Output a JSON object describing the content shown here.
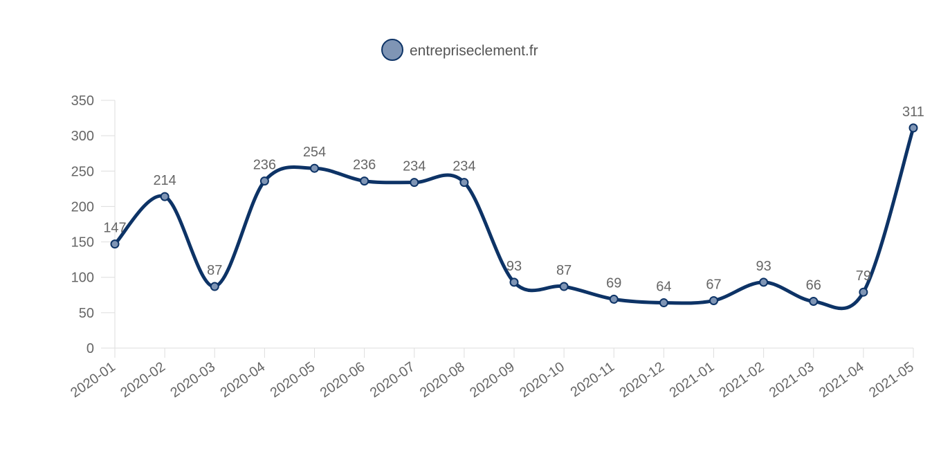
{
  "chart_data": {
    "type": "line",
    "title": "",
    "xlabel": "",
    "ylabel": "",
    "categories": [
      "2020-01",
      "2020-02",
      "2020-03",
      "2020-04",
      "2020-05",
      "2020-06",
      "2020-07",
      "2020-08",
      "2020-09",
      "2020-10",
      "2020-11",
      "2020-12",
      "2021-01",
      "2021-02",
      "2021-03",
      "2021-04",
      "2021-05"
    ],
    "series": [
      {
        "name": "entrepriseclement.fr",
        "values": [
          147,
          214,
          87,
          236,
          254,
          236,
          234,
          234,
          93,
          87,
          69,
          64,
          67,
          93,
          66,
          79,
          311
        ]
      }
    ],
    "ylim": [
      0,
      350
    ],
    "yticks": [
      0,
      50,
      100,
      150,
      200,
      250,
      300,
      350
    ],
    "grid": false,
    "legend_position": "top-center",
    "data_labels": true,
    "smooth": true
  },
  "colors": {
    "line": "#0d3366",
    "marker_fill": "#7f95b5",
    "axis": "#dddddd",
    "text": "#666666"
  }
}
